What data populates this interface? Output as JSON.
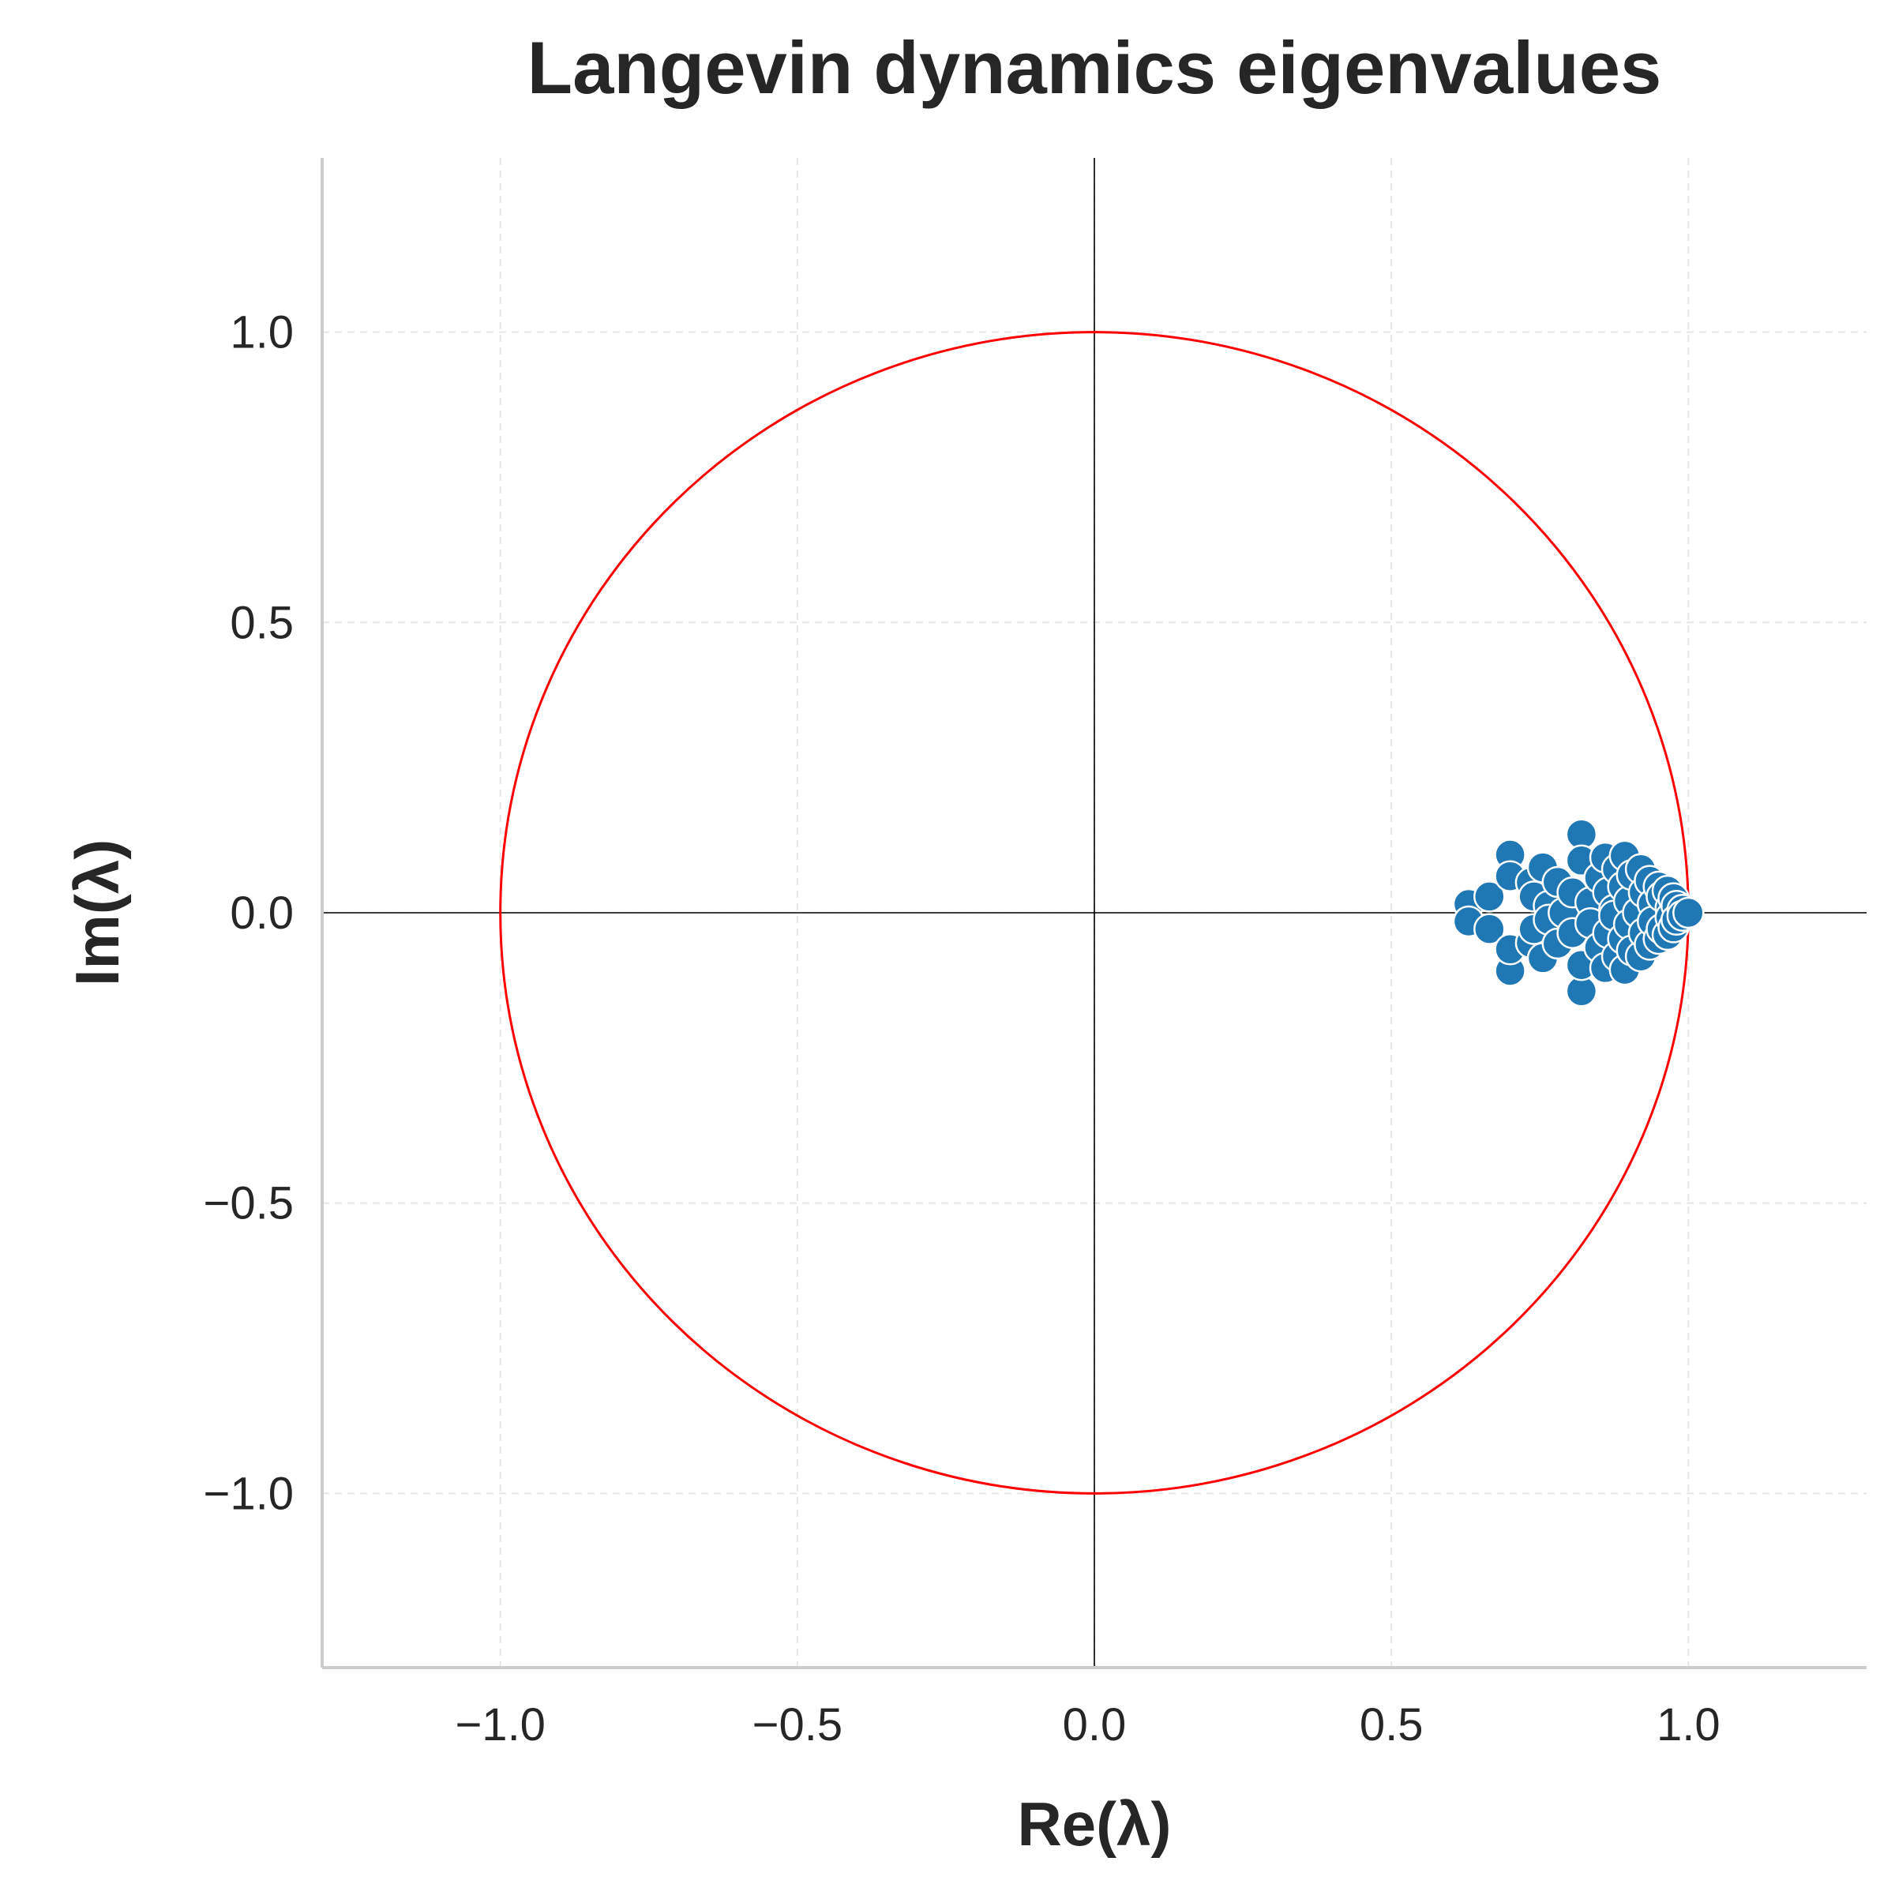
{
  "chart_data": {
    "type": "scatter",
    "title": "Langevin dynamics eigenvalues",
    "xlabel": "Re(λ)",
    "ylabel": "Im(λ)",
    "xlim": [
      -1.3,
      1.3
    ],
    "ylim": [
      -1.3,
      1.3
    ],
    "xticks": [
      -1.0,
      -0.5,
      0.0,
      0.5,
      1.0
    ],
    "yticks": [
      -1.0,
      -0.5,
      0.0,
      0.5,
      1.0
    ],
    "xtick_labels": [
      "−1.0",
      "−0.5",
      "0.0",
      "0.5",
      "1.0"
    ],
    "ytick_labels": [
      "−1.0",
      "−0.5",
      "0.0",
      "0.5",
      "1.0"
    ],
    "grid": true,
    "unit_circle": {
      "center": [
        0,
        0
      ],
      "radius": 1.0,
      "color": "#ff0000"
    },
    "reference_lines": {
      "x": 0,
      "y": 0,
      "color": "#000000"
    },
    "point_color": "#1f77b4",
    "points": [
      [
        0.63,
        0.015
      ],
      [
        0.63,
        -0.015
      ],
      [
        0.665,
        0.028
      ],
      [
        0.665,
        -0.028
      ],
      [
        0.7,
        0.1
      ],
      [
        0.7,
        -0.1
      ],
      [
        0.7,
        0.063
      ],
      [
        0.7,
        -0.063
      ],
      [
        0.735,
        0.052
      ],
      [
        0.735,
        -0.052
      ],
      [
        0.74,
        0.028
      ],
      [
        0.74,
        -0.028
      ],
      [
        0.755,
        0.078
      ],
      [
        0.755,
        -0.078
      ],
      [
        0.765,
        0.012
      ],
      [
        0.765,
        -0.012
      ],
      [
        0.78,
        0.053
      ],
      [
        0.78,
        -0.053
      ],
      [
        0.79,
        0.0
      ],
      [
        0.805,
        0.035
      ],
      [
        0.805,
        -0.035
      ],
      [
        0.82,
        0.135
      ],
      [
        0.82,
        -0.135
      ],
      [
        0.82,
        0.09
      ],
      [
        0.82,
        -0.09
      ],
      [
        0.835,
        0.018
      ],
      [
        0.835,
        -0.018
      ],
      [
        0.85,
        0.06
      ],
      [
        0.85,
        -0.06
      ],
      [
        0.86,
        0.095
      ],
      [
        0.86,
        -0.095
      ],
      [
        0.865,
        0.035
      ],
      [
        0.865,
        -0.035
      ],
      [
        0.875,
        0.005
      ],
      [
        0.875,
        -0.005
      ],
      [
        0.88,
        0.075
      ],
      [
        0.88,
        -0.075
      ],
      [
        0.893,
        0.098
      ],
      [
        0.893,
        -0.098
      ],
      [
        0.89,
        0.045
      ],
      [
        0.89,
        -0.045
      ],
      [
        0.9,
        0.02
      ],
      [
        0.9,
        -0.02
      ],
      [
        0.905,
        0.065
      ],
      [
        0.905,
        -0.065
      ],
      [
        0.915,
        0.0
      ],
      [
        0.92,
        0.075
      ],
      [
        0.92,
        -0.075
      ],
      [
        0.925,
        0.035
      ],
      [
        0.925,
        -0.035
      ],
      [
        0.935,
        0.055
      ],
      [
        0.935,
        -0.055
      ],
      [
        0.94,
        0.015
      ],
      [
        0.94,
        -0.015
      ],
      [
        0.95,
        0.045
      ],
      [
        0.95,
        -0.045
      ],
      [
        0.955,
        0.028
      ],
      [
        0.955,
        -0.028
      ],
      [
        0.965,
        0.038
      ],
      [
        0.965,
        -0.038
      ],
      [
        0.97,
        0.008
      ],
      [
        0.97,
        -0.008
      ],
      [
        0.975,
        0.025
      ],
      [
        0.975,
        -0.025
      ],
      [
        0.98,
        0.012
      ],
      [
        0.98,
        -0.012
      ],
      [
        0.99,
        0.005
      ],
      [
        0.99,
        -0.005
      ],
      [
        1.0,
        0.0
      ]
    ]
  }
}
